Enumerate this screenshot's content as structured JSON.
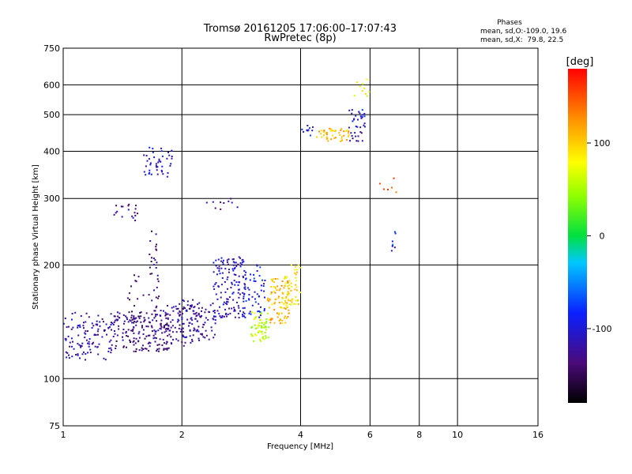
{
  "chart_data": {
    "type": "scatter",
    "title": "Tromsø 20161205 17:06:00–17:07:43",
    "subtitle": "RwPretec (8p)",
    "xlabel": "Frequency [MHz]",
    "ylabel": "Stationary phase Virtual Height [km]",
    "x_scale": "log",
    "y_scale": "log",
    "xlim": [
      1,
      16
    ],
    "ylim": [
      75,
      750
    ],
    "x_ticks": [
      1,
      2,
      4,
      6,
      8,
      10,
      16
    ],
    "y_ticks": [
      75,
      100,
      200,
      300,
      400,
      500,
      600,
      750
    ],
    "grid": true,
    "phases_box": {
      "title": "Phases",
      "line1": "mean, sd,O:-109.0, 19.6",
      "line2": "mean, sd,X:  79.8, 22.5"
    },
    "colorbar": {
      "label": "[deg]",
      "range": [
        -180,
        180
      ],
      "ticks": [
        100,
        0,
        -100
      ]
    },
    "clusters": [
      {
        "x_range": [
          1.0,
          1.35
        ],
        "y_range": [
          112,
          150
        ],
        "phase": -115,
        "count": 110
      },
      {
        "x_range": [
          1.3,
          1.9
        ],
        "y_range": [
          118,
          150
        ],
        "phase": -130,
        "count": 170
      },
      {
        "x_range": [
          1.7,
          2.3
        ],
        "y_range": [
          122,
          158
        ],
        "phase": -125,
        "count": 120
      },
      {
        "x_range": [
          1.65,
          1.75
        ],
        "y_range": [
          140,
          250
        ],
        "phase": -130,
        "count": 35
      },
      {
        "x_range": [
          1.45,
          1.6
        ],
        "y_range": [
          140,
          190
        ],
        "phase": -135,
        "count": 20
      },
      {
        "x_range": [
          2.0,
          2.45
        ],
        "y_range": [
          125,
          165
        ],
        "phase": -115,
        "count": 50
      },
      {
        "x_range": [
          2.4,
          2.9
        ],
        "y_range": [
          145,
          210
        ],
        "phase": -105,
        "count": 140
      },
      {
        "x_range": [
          2.85,
          3.25
        ],
        "y_range": [
          145,
          200
        ],
        "phase": -90,
        "count": 55
      },
      {
        "x_range": [
          3.0,
          3.35
        ],
        "y_range": [
          125,
          150
        ],
        "phase": 60,
        "count": 60
      },
      {
        "x_range": [
          3.3,
          3.75
        ],
        "y_range": [
          140,
          185
        ],
        "phase": 110,
        "count": 90
      },
      {
        "x_range": [
          3.6,
          4.0
        ],
        "y_range": [
          155,
          200
        ],
        "phase": 90,
        "count": 50
      },
      {
        "x_range": [
          1.6,
          1.9
        ],
        "y_range": [
          340,
          410
        ],
        "phase": -100,
        "count": 45
      },
      {
        "x_range": [
          1.3,
          1.55
        ],
        "y_range": [
          260,
          290
        ],
        "phase": -125,
        "count": 18
      },
      {
        "x_range": [
          2.3,
          2.8
        ],
        "y_range": [
          280,
          300
        ],
        "phase": -120,
        "count": 10
      },
      {
        "x_range": [
          4.0,
          4.3
        ],
        "y_range": [
          440,
          470
        ],
        "phase": -90,
        "count": 10
      },
      {
        "x_range": [
          4.4,
          5.3
        ],
        "y_range": [
          425,
          460
        ],
        "phase": 105,
        "count": 45
      },
      {
        "x_range": [
          5.3,
          5.9
        ],
        "y_range": [
          460,
          520
        ],
        "phase": -95,
        "count": 25
      },
      {
        "x_range": [
          5.3,
          5.8
        ],
        "y_range": [
          420,
          450
        ],
        "phase": -125,
        "count": 12
      },
      {
        "x_range": [
          5.4,
          6.0
        ],
        "y_range": [
          560,
          620
        ],
        "phase": 80,
        "count": 10
      },
      {
        "x_range": [
          6.8,
          7.0
        ],
        "y_range": [
          215,
          245
        ],
        "phase": -80,
        "count": 8
      },
      {
        "x_range": [
          6.2,
          7.0
        ],
        "y_range": [
          300,
          350
        ],
        "phase": 150,
        "count": 6
      }
    ]
  }
}
